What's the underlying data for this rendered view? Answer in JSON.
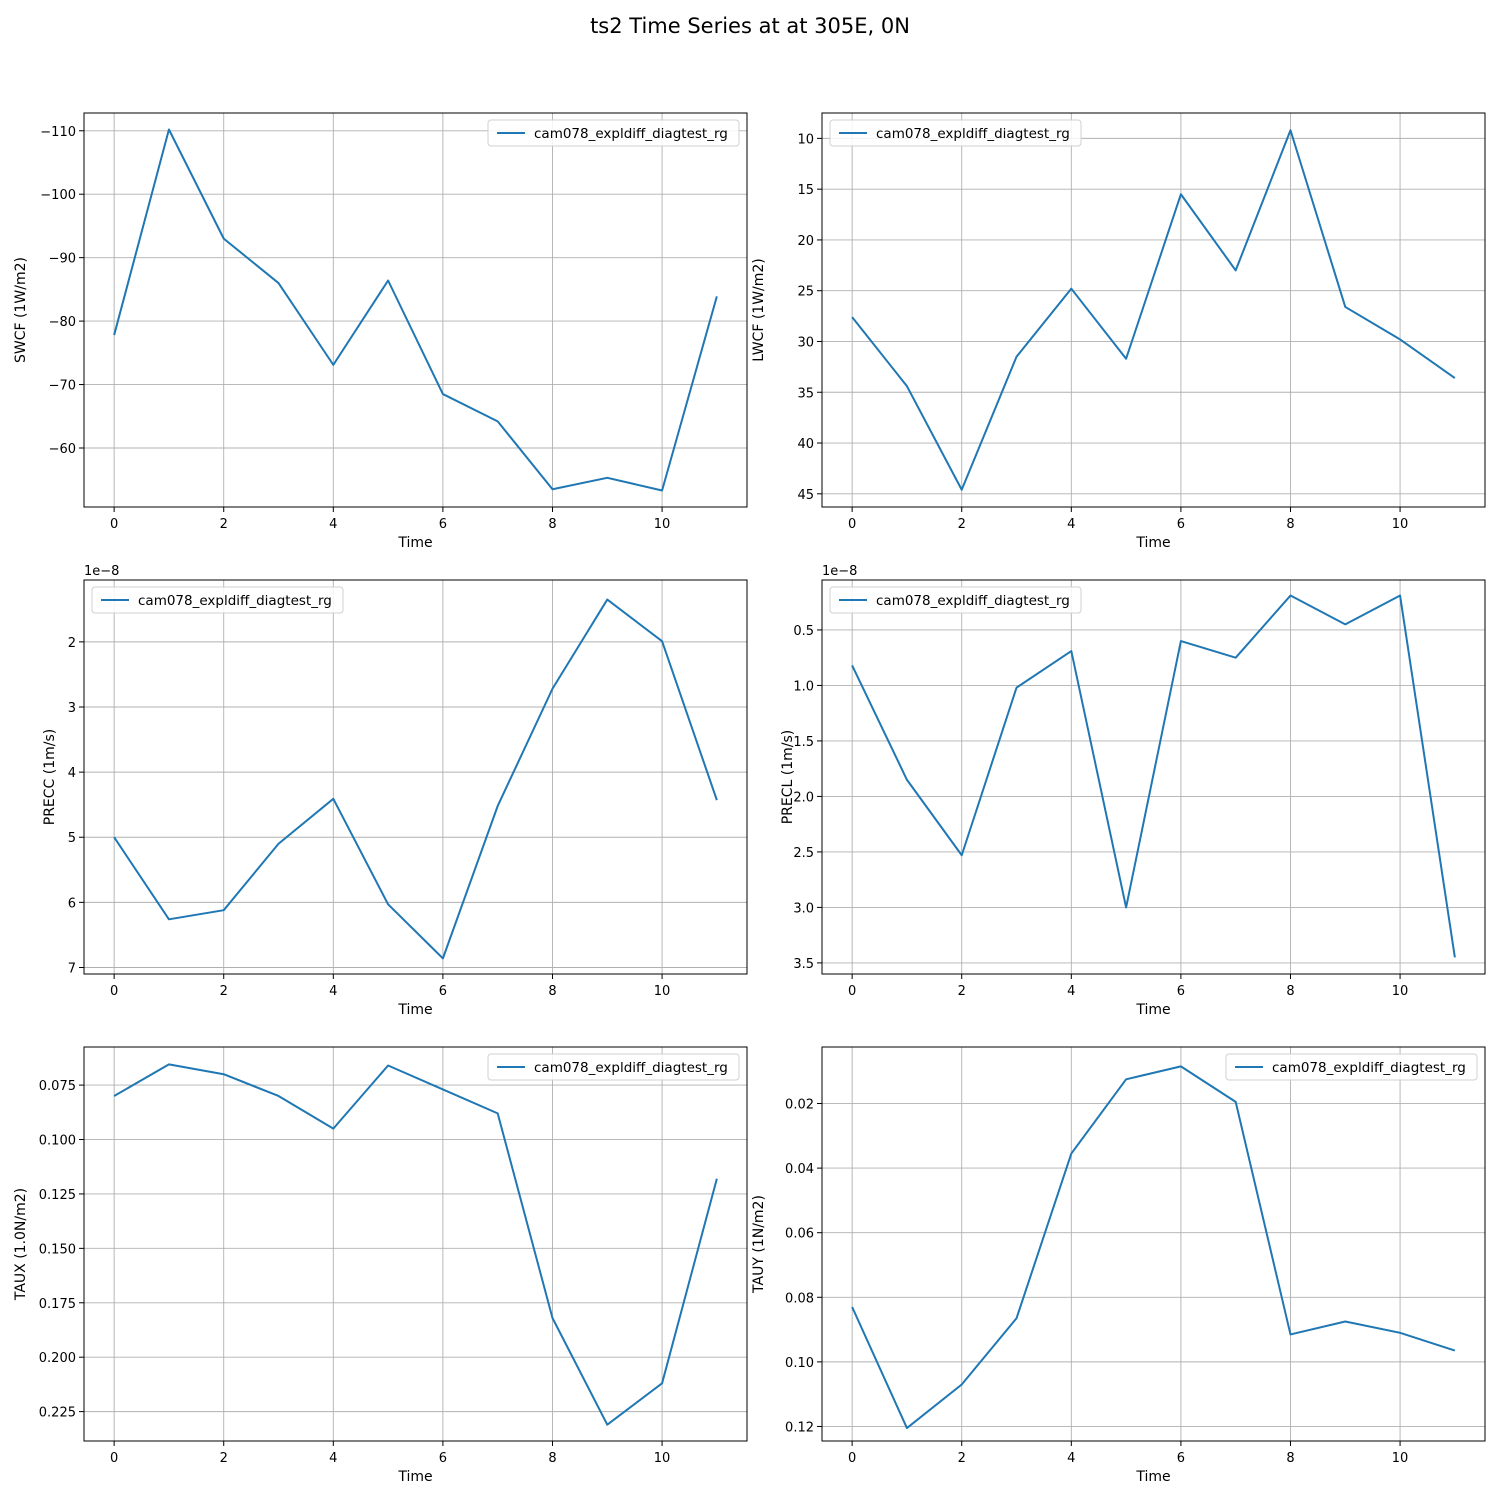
{
  "title": "ts2 Time Series at at 305E, 0N",
  "chart_data": [
    {
      "type": "line",
      "xlabel": "Time",
      "ylabel": "SWCF (1W/m2)",
      "x": [
        0,
        1,
        2,
        3,
        4,
        5,
        6,
        7,
        8,
        9,
        10,
        11
      ],
      "series": [
        {
          "name": "cam078_expldiff_diagtest_rg",
          "values": [
            -77.8,
            -110.2,
            -93.0,
            -86.0,
            -73.1,
            -86.4,
            -68.5,
            -64.2,
            -53.5,
            -55.3,
            -53.3,
            -83.9
          ]
        }
      ],
      "xlim": [
        -0.55,
        11.55
      ],
      "ylim": [
        -50.7,
        -112.8
      ],
      "inverted_y": true,
      "xticks": [
        0,
        2,
        4,
        6,
        8,
        10
      ],
      "yticks": [
        -60,
        -70,
        -80,
        -90,
        -100,
        -110
      ],
      "ytick_labels": [
        "−60",
        "−70",
        "−80",
        "−90",
        "−100",
        "−110"
      ],
      "offset_text": "",
      "grid": true,
      "legend_loc": "upper right",
      "color": "#1f77b4"
    },
    {
      "type": "line",
      "xlabel": "Time",
      "ylabel": "LWCF (1W/m2)",
      "x": [
        0,
        1,
        2,
        3,
        4,
        5,
        6,
        7,
        8,
        9,
        10,
        11
      ],
      "series": [
        {
          "name": "cam078_expldiff_diagtest_rg",
          "values": [
            27.6,
            34.4,
            44.6,
            31.5,
            24.8,
            31.7,
            15.5,
            23.0,
            9.2,
            26.6,
            29.8,
            33.6
          ]
        }
      ],
      "xlim": [
        -0.55,
        11.55
      ],
      "ylim": [
        46.3,
        7.5
      ],
      "inverted_y": true,
      "xticks": [
        0,
        2,
        4,
        6,
        8,
        10
      ],
      "yticks": [
        10,
        15,
        20,
        25,
        30,
        35,
        40,
        45
      ],
      "ytick_labels": [
        "10",
        "15",
        "20",
        "25",
        "30",
        "35",
        "40",
        "45"
      ],
      "offset_text": "",
      "grid": true,
      "legend_loc": "upper left",
      "color": "#1f77b4"
    },
    {
      "type": "line",
      "xlabel": "Time",
      "ylabel": "PRECC (1m/s)",
      "x": [
        0,
        1,
        2,
        3,
        4,
        5,
        6,
        7,
        8,
        9,
        10,
        11
      ],
      "series": [
        {
          "name": "cam078_expldiff_diagtest_rg",
          "values": [
            5.0,
            6.26,
            6.12,
            5.1,
            4.41,
            6.03,
            6.86,
            4.52,
            2.72,
            1.35,
            1.99,
            4.43
          ]
        }
      ],
      "xlim": [
        -0.55,
        11.55
      ],
      "ylim": [
        7.1,
        1.05
      ],
      "inverted_y": true,
      "xticks": [
        0,
        2,
        4,
        6,
        8,
        10
      ],
      "yticks": [
        2,
        3,
        4,
        5,
        6,
        7
      ],
      "ytick_labels": [
        "2",
        "3",
        "4",
        "5",
        "6",
        "7"
      ],
      "offset_text": "1e−8",
      "grid": true,
      "legend_loc": "upper left",
      "color": "#1f77b4"
    },
    {
      "type": "line",
      "xlabel": "Time",
      "ylabel": "PRECL (1m/s)",
      "x": [
        0,
        1,
        2,
        3,
        4,
        5,
        6,
        7,
        8,
        9,
        10,
        11
      ],
      "series": [
        {
          "name": "cam078_expldiff_diagtest_rg",
          "values": [
            0.82,
            1.85,
            2.53,
            1.02,
            0.69,
            3.0,
            0.6,
            0.75,
            0.19,
            0.45,
            0.19,
            3.45
          ]
        }
      ],
      "xlim": [
        -0.55,
        11.55
      ],
      "ylim": [
        3.6,
        0.05
      ],
      "inverted_y": true,
      "xticks": [
        0,
        2,
        4,
        6,
        8,
        10
      ],
      "yticks": [
        0.5,
        1.0,
        1.5,
        2.0,
        2.5,
        3.0,
        3.5
      ],
      "ytick_labels": [
        "0.5",
        "1.0",
        "1.5",
        "2.0",
        "2.5",
        "3.0",
        "3.5"
      ],
      "offset_text": "1e−8",
      "grid": true,
      "legend_loc": "upper left",
      "color": "#1f77b4"
    },
    {
      "type": "line",
      "xlabel": "Time",
      "ylabel": "TAUX (1.0N/m2)",
      "x": [
        0,
        1,
        2,
        3,
        4,
        5,
        6,
        7,
        8,
        9,
        10,
        11
      ],
      "series": [
        {
          "name": "cam078_expldiff_diagtest_rg",
          "values": [
            0.08,
            0.0655,
            0.07,
            0.08,
            0.095,
            0.066,
            0.077,
            0.088,
            0.182,
            0.231,
            0.212,
            0.118
          ]
        }
      ],
      "xlim": [
        -0.55,
        11.55
      ],
      "ylim": [
        0.2385,
        0.0575
      ],
      "inverted_y": true,
      "xticks": [
        0,
        2,
        4,
        6,
        8,
        10
      ],
      "yticks": [
        0.075,
        0.1,
        0.125,
        0.15,
        0.175,
        0.2,
        0.225
      ],
      "ytick_labels": [
        "0.075",
        "0.100",
        "0.125",
        "0.150",
        "0.175",
        "0.200",
        "0.225"
      ],
      "offset_text": "",
      "grid": true,
      "legend_loc": "upper right",
      "color": "#1f77b4"
    },
    {
      "type": "line",
      "xlabel": "Time",
      "ylabel": "TAUY (1N/m2)",
      "x": [
        0,
        1,
        2,
        3,
        4,
        5,
        6,
        7,
        8,
        9,
        10,
        11
      ],
      "series": [
        {
          "name": "cam078_expldiff_diagtest_rg",
          "values": [
            0.083,
            0.1205,
            0.107,
            0.0865,
            0.0355,
            0.0125,
            0.0085,
            0.0195,
            0.0915,
            0.0875,
            0.091,
            0.0965
          ]
        }
      ],
      "xlim": [
        -0.55,
        11.55
      ],
      "ylim": [
        0.1245,
        0.0025
      ],
      "inverted_y": true,
      "xticks": [
        0,
        2,
        4,
        6,
        8,
        10
      ],
      "yticks": [
        0.02,
        0.04,
        0.06,
        0.08,
        0.1,
        0.12
      ],
      "ytick_labels": [
        "0.02",
        "0.04",
        "0.06",
        "0.08",
        "0.10",
        "0.12"
      ],
      "offset_text": "",
      "grid": true,
      "legend_loc": "upper right",
      "color": "#1f77b4"
    }
  ]
}
